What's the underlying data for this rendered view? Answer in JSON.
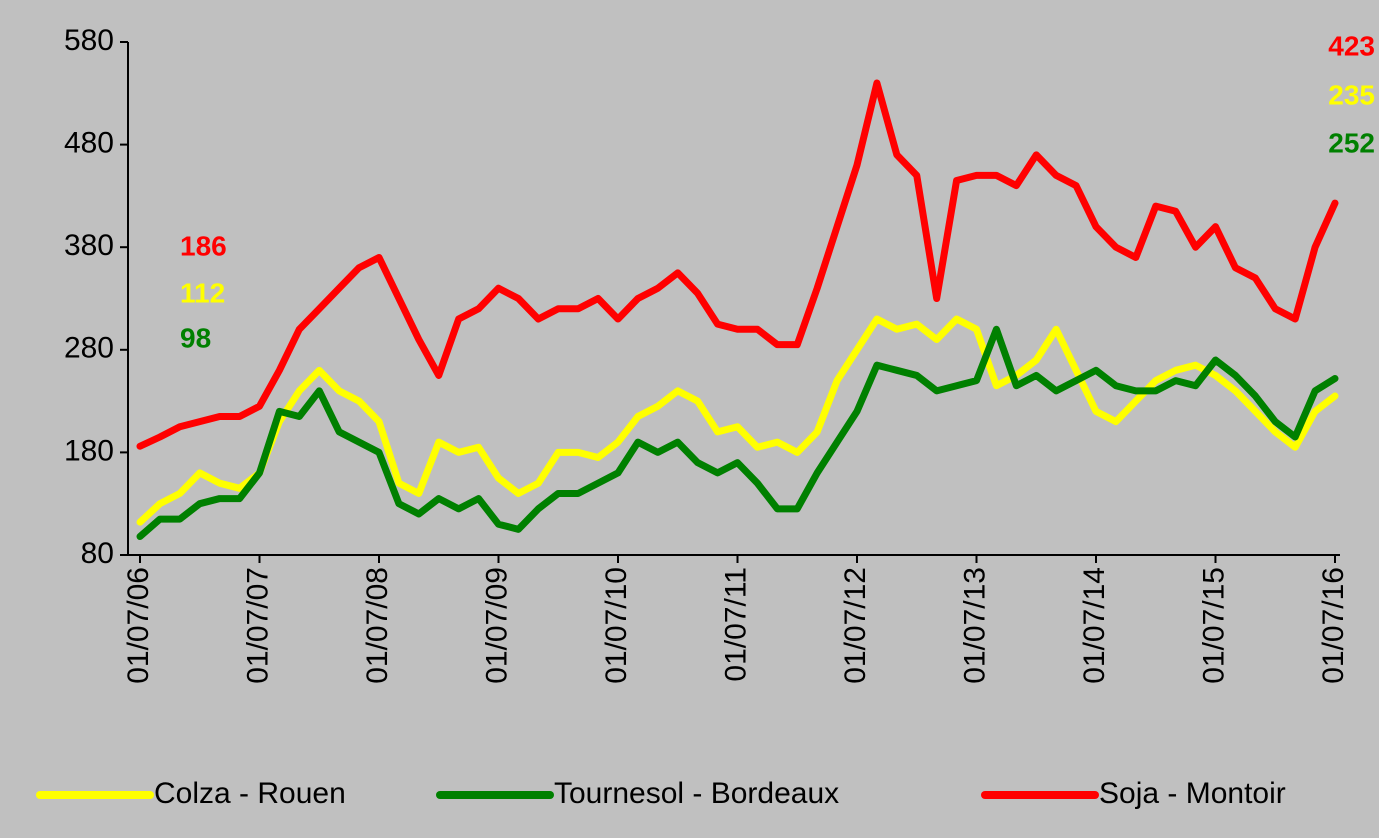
{
  "chart_data": {
    "type": "line",
    "categories": [
      "01/07/06",
      null,
      null,
      null,
      null,
      null,
      "01/07/07",
      null,
      null,
      null,
      null,
      null,
      "01/07/08",
      null,
      null,
      null,
      null,
      null,
      "01/07/09",
      null,
      null,
      null,
      null,
      null,
      "01/07/10",
      null,
      null,
      null,
      null,
      null,
      "01/07/11",
      null,
      null,
      null,
      null,
      null,
      "01/07/12",
      null,
      null,
      null,
      null,
      null,
      "01/07/13",
      null,
      null,
      null,
      null,
      null,
      "01/07/14",
      null,
      null,
      null,
      null,
      null,
      "01/07/15",
      null,
      null,
      null,
      null,
      null,
      "01/07/16"
    ],
    "series": [
      {
        "name": "Colza - Rouen",
        "color": "#ffff00",
        "values": [
          112,
          130,
          140,
          160,
          150,
          145,
          160,
          210,
          240,
          260,
          240,
          230,
          210,
          150,
          140,
          190,
          180,
          185,
          155,
          140,
          150,
          180,
          180,
          175,
          190,
          215,
          225,
          240,
          230,
          200,
          205,
          185,
          190,
          180,
          200,
          250,
          280,
          310,
          300,
          305,
          290,
          310,
          300,
          245,
          255,
          270,
          300,
          260,
          220,
          210,
          230,
          250,
          260,
          265,
          255,
          240,
          220,
          200,
          185,
          220,
          235
        ]
      },
      {
        "name": "Tournesol - Bordeaux",
        "color": "#008000",
        "values": [
          98,
          115,
          115,
          130,
          135,
          135,
          160,
          220,
          215,
          240,
          200,
          190,
          180,
          130,
          120,
          135,
          125,
          135,
          110,
          105,
          125,
          140,
          140,
          150,
          160,
          190,
          180,
          190,
          170,
          160,
          170,
          150,
          125,
          125,
          160,
          190,
          220,
          265,
          260,
          255,
          240,
          245,
          250,
          300,
          245,
          255,
          240,
          250,
          260,
          245,
          240,
          240,
          250,
          245,
          270,
          255,
          235,
          210,
          195,
          240,
          252
        ]
      },
      {
        "name": "Soja - Montoir",
        "color": "#ff0000",
        "values": [
          186,
          195,
          205,
          210,
          215,
          215,
          225,
          260,
          300,
          320,
          340,
          360,
          370,
          330,
          290,
          255,
          310,
          320,
          340,
          330,
          310,
          320,
          320,
          330,
          310,
          330,
          340,
          355,
          335,
          305,
          300,
          300,
          285,
          285,
          340,
          400,
          460,
          540,
          470,
          450,
          330,
          445,
          450,
          450,
          440,
          470,
          450,
          440,
          400,
          380,
          370,
          420,
          415,
          380,
          400,
          360,
          350,
          320,
          310,
          380,
          423
        ]
      }
    ],
    "annotations": [
      {
        "text": "186",
        "color": "#ff0000"
      },
      {
        "text": "112",
        "color": "#ffff00"
      },
      {
        "text": "98",
        "color": "#008000"
      },
      {
        "text": "423",
        "color": "#ff0000"
      },
      {
        "text": "235",
        "color": "#ffff00"
      },
      {
        "text": "252",
        "color": "#008000"
      }
    ],
    "ylim": [
      80,
      580
    ],
    "yticks": [
      80,
      180,
      280,
      380,
      480,
      580
    ],
    "grid": false,
    "legend": "bottom"
  }
}
